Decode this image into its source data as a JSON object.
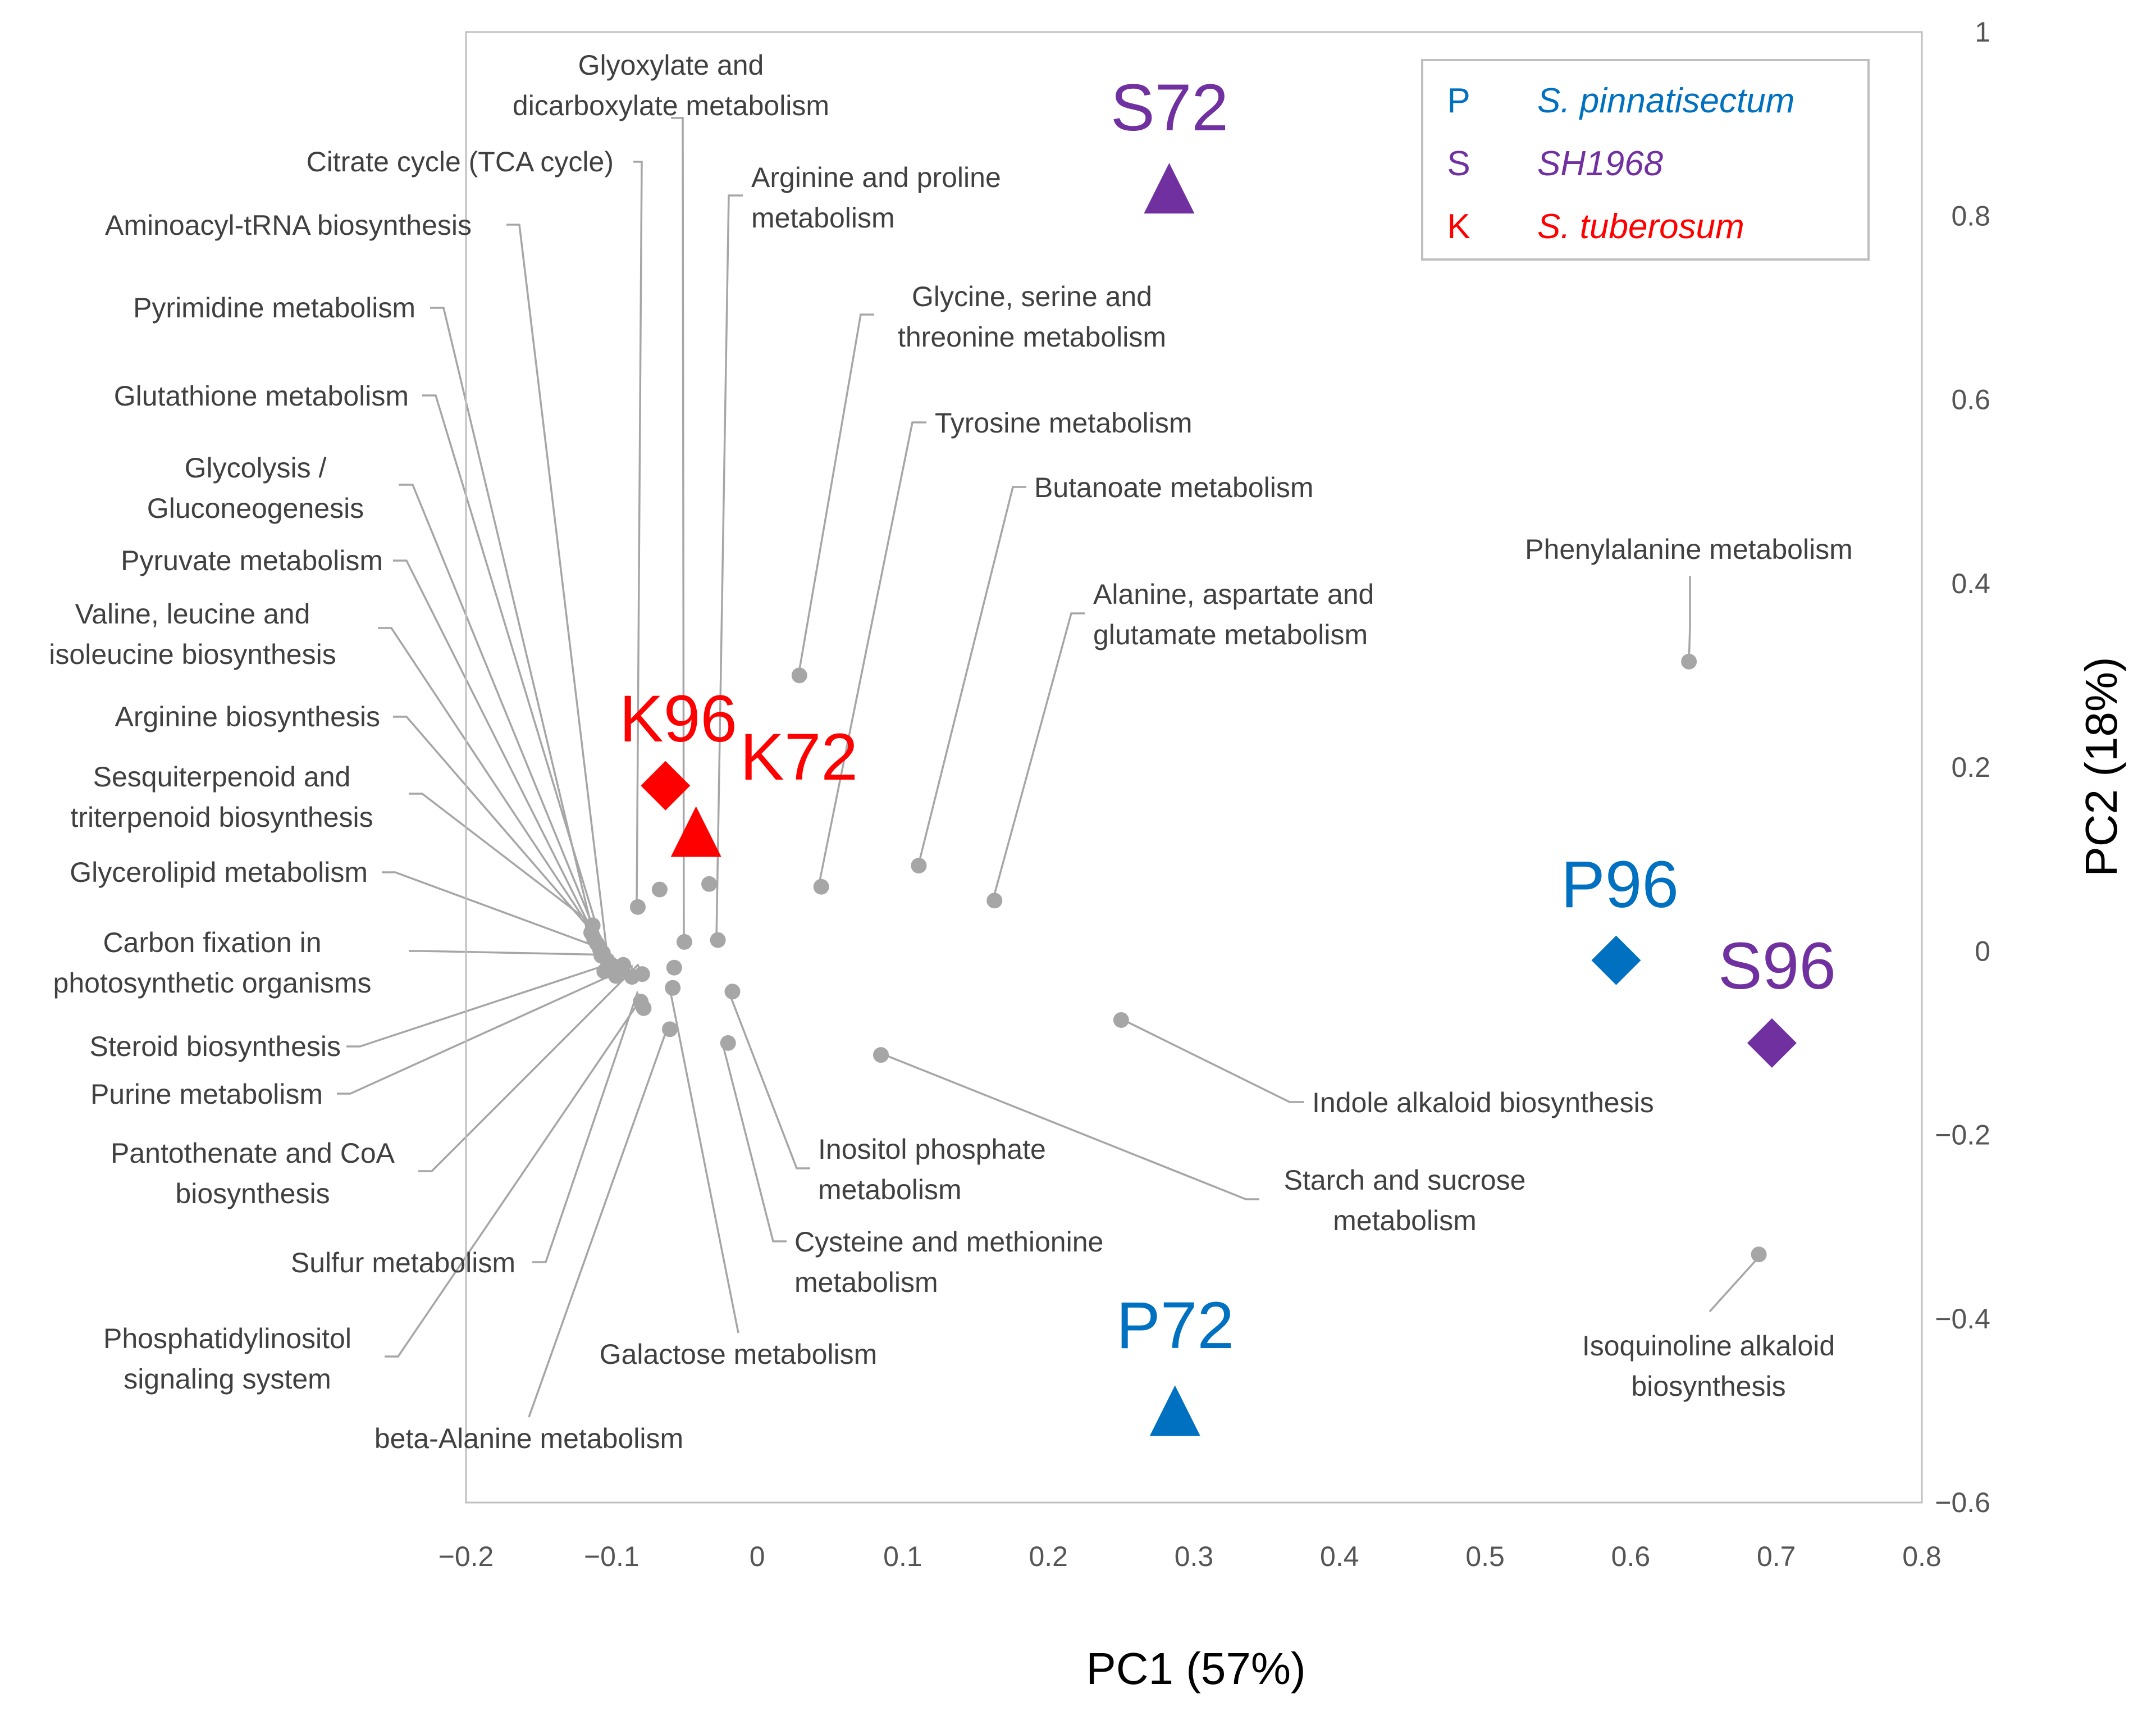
{
  "chart_data": {
    "type": "scatter",
    "title": "",
    "xlabel": "PC1 (57%)",
    "ylabel": "PC2 (18%)",
    "xlim": [
      -0.2,
      0.8
    ],
    "ylim": [
      -0.6,
      1.0
    ],
    "x_ticks": [
      {
        "value": -0.2,
        "label": "−0.2"
      },
      {
        "value": -0.1,
        "label": "−0.1"
      },
      {
        "value": 0,
        "label": "0"
      },
      {
        "value": 0.1,
        "label": "0.1"
      },
      {
        "value": 0.2,
        "label": "0.2"
      },
      {
        "value": 0.3,
        "label": "0.3"
      },
      {
        "value": 0.4,
        "label": "0.4"
      },
      {
        "value": 0.5,
        "label": "0.5"
      },
      {
        "value": 0.6,
        "label": "0.6"
      },
      {
        "value": 0.7,
        "label": "0.7"
      },
      {
        "value": 0.8,
        "label": "0.8"
      }
    ],
    "y_ticks": [
      {
        "value": 1.0,
        "label": "1"
      },
      {
        "value": 0.8,
        "label": "0.8"
      },
      {
        "value": 0.6,
        "label": "0.6"
      },
      {
        "value": 0.4,
        "label": "0.4"
      },
      {
        "value": 0.2,
        "label": "0.2"
      },
      {
        "value": 0,
        "label": "0"
      },
      {
        "value": -0.2,
        "label": "−0.2"
      },
      {
        "value": -0.4,
        "label": "−0.4"
      },
      {
        "value": -0.6,
        "label": "−0.6"
      }
    ],
    "grid": false,
    "legend": {
      "position": "top-right",
      "entries": [
        {
          "key": "P",
          "name": "S. pinnatisectum",
          "color": "#0070c0"
        },
        {
          "key": "S",
          "name": "SH1968",
          "color": "#7030a0"
        },
        {
          "key": "K",
          "name": "S. tuberosum",
          "color": "#ff0000"
        }
      ]
    },
    "samples": [
      {
        "name": "S72",
        "group": "S",
        "shape": "triangle",
        "x": 0.283,
        "y": 0.83
      },
      {
        "name": "S96",
        "group": "S",
        "shape": "diamond",
        "x": 0.697,
        "y": -0.1
      },
      {
        "name": "P96",
        "group": "P",
        "shape": "diamond",
        "x": 0.59,
        "y": -0.01
      },
      {
        "name": "P72",
        "group": "P",
        "shape": "triangle",
        "x": 0.287,
        "y": -0.5
      },
      {
        "name": "K96",
        "group": "K",
        "shape": "diamond",
        "x": -0.063,
        "y": 0.18
      },
      {
        "name": "K72",
        "group": "K",
        "shape": "triangle",
        "x": -0.042,
        "y": 0.13
      }
    ],
    "variables": [
      {
        "label": [
          "Glyoxylate and",
          "dicarboxylate metabolism"
        ],
        "x": -0.05,
        "y": 0.01
      },
      {
        "label": [
          "Citrate cycle (TCA cycle)"
        ],
        "x": -0.082,
        "y": 0.048
      },
      {
        "label": [
          "Aminoacyl-tRNA biosynthesis"
        ],
        "x": -0.098,
        "y": -0.022
      },
      {
        "label": [
          "Pyrimidine metabolism"
        ],
        "x": -0.11,
        "y": 0.008
      },
      {
        "label": [
          "Glutathione metabolism"
        ],
        "x": -0.103,
        "y": -0.01
      },
      {
        "label": [
          "Glycolysis /",
          "Gluconeogenesis"
        ],
        "x": -0.106,
        "y": -0.002
      },
      {
        "label": [
          "Pyruvate metabolism"
        ],
        "x": -0.108,
        "y": 0.002
      },
      {
        "label": [
          "Valine, leucine and",
          "isoleucine biosynthesis"
        ],
        "x": -0.112,
        "y": 0.013
      },
      {
        "label": [
          "Arginine biosynthesis"
        ],
        "x": -0.114,
        "y": 0.02
      },
      {
        "label": [
          "Sesquiterpenoid and",
          "triterpenoid biosynthesis"
        ],
        "x": -0.113,
        "y": 0.028
      },
      {
        "label": [
          "Glycerolipid metabolism"
        ],
        "x": -0.107,
        "y": -0.005
      },
      {
        "label": [
          "Carbon fixation in",
          "photosynthetic organisms"
        ],
        "x": -0.1,
        "y": -0.015
      },
      {
        "label": [
          "Steroid biosynthesis"
        ],
        "x": -0.093,
        "y": -0.02
      },
      {
        "label": [
          "Purine metabolism"
        ],
        "x": -0.086,
        "y": -0.028
      },
      {
        "label": [
          "Pantothenate and CoA",
          "biosynthesis"
        ],
        "x": -0.079,
        "y": -0.025
      },
      {
        "label": [
          "Sulfur metabolism"
        ],
        "x": -0.08,
        "y": -0.055
      },
      {
        "label": [
          "Phosphatidylinositol",
          "signaling system"
        ],
        "x": -0.078,
        "y": -0.062
      },
      {
        "label": [
          "beta-Alanine metabolism"
        ],
        "x": -0.06,
        "y": -0.085
      },
      {
        "label": [
          "Galactose metabolism"
        ],
        "x": -0.058,
        "y": -0.04
      },
      {
        "label": [
          "Cysteine and methionine",
          "metabolism"
        ],
        "x": -0.02,
        "y": -0.1
      },
      {
        "label": [
          "Inositol phosphate",
          "metabolism"
        ],
        "x": -0.017,
        "y": -0.044
      },
      {
        "label": [
          "Arginine and proline",
          "metabolism"
        ],
        "x": -0.027,
        "y": 0.012
      },
      {
        "label": [
          "Glycine, serine and",
          "threonine metabolism"
        ],
        "x": 0.029,
        "y": 0.3
      },
      {
        "label": [
          "Tyrosine metabolism"
        ],
        "x": 0.044,
        "y": 0.07
      },
      {
        "label": [
          "Butanoate metabolism"
        ],
        "x": 0.111,
        "y": 0.093
      },
      {
        "label": [
          "Alanine, aspartate and",
          "glutamate metabolism"
        ],
        "x": 0.163,
        "y": 0.055
      },
      {
        "label": [
          "Phenylalanine metabolism"
        ],
        "x": 0.64,
        "y": 0.315
      },
      {
        "label": [
          "Indole alkaloid biosynthesis"
        ],
        "x": 0.25,
        "y": -0.075
      },
      {
        "label": [
          "Starch and sucrose",
          "metabolism"
        ],
        "x": 0.085,
        "y": -0.113
      },
      {
        "label": [
          "Isoquinoline alkaloid",
          "biosynthesis"
        ],
        "x": 0.688,
        "y": -0.33
      }
    ],
    "unlabeled_points": [
      {
        "x": -0.033,
        "y": 0.073
      },
      {
        "x": -0.067,
        "y": 0.067
      },
      {
        "x": -0.057,
        "y": -0.018
      },
      {
        "x": -0.097,
        "y": -0.027
      },
      {
        "x": -0.092,
        "y": -0.015
      },
      {
        "x": -0.105,
        "y": -0.022
      }
    ]
  }
}
